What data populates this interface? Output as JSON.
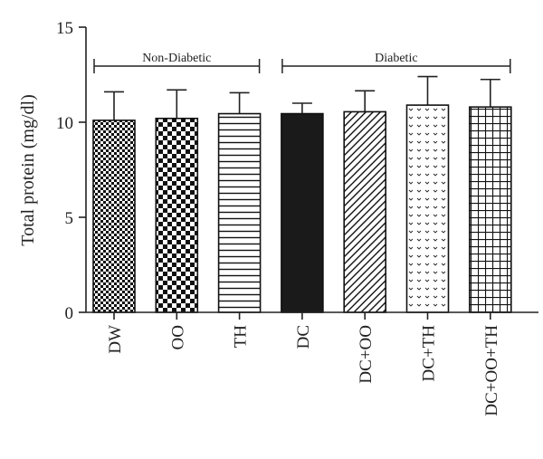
{
  "chart_data": {
    "type": "bar",
    "title": "",
    "xlabel": "",
    "ylabel": "Total protein (mg/dl)",
    "ylim": [
      0,
      15
    ],
    "yticks": [
      0,
      5,
      10,
      15
    ],
    "grid": false,
    "categories": [
      "DW",
      "OO",
      "TH",
      "DC",
      "DC+OO",
      "DC+TH",
      "DC+OO+TH"
    ],
    "values": [
      10.1,
      10.2,
      10.45,
      10.45,
      10.55,
      10.9,
      10.8
    ],
    "errors": [
      1.5,
      1.5,
      1.1,
      0.55,
      1.1,
      1.5,
      1.45
    ],
    "fills": [
      "small-checker",
      "large-checker",
      "horizontal-lines",
      "solid-black",
      "diagonal-lines",
      "chevron-dots",
      "grid-squares"
    ],
    "groups": [
      {
        "label": "Non-Diabetic",
        "from": 0,
        "to": 2
      },
      {
        "label": "Diabetic",
        "from": 3,
        "to": 6
      }
    ]
  }
}
